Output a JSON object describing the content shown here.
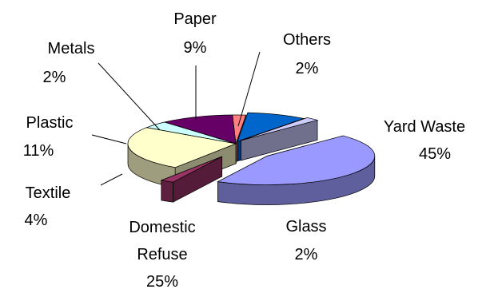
{
  "chart_data": {
    "type": "pie",
    "style": "3d-exploded",
    "legend": "none",
    "slices": [
      {
        "name": "Yard Waste",
        "value": 45,
        "label": "45%",
        "color": "#9999ff"
      },
      {
        "name": "Glass",
        "value": 2,
        "label": "2%",
        "color": "#993366"
      },
      {
        "name": "Domestic Refuse",
        "value": 25,
        "label": "25%",
        "color": "#ffffcc"
      },
      {
        "name": "Textile",
        "value": 4,
        "label": "4%",
        "color": "#ccffff"
      },
      {
        "name": "Plastic",
        "value": 11,
        "label": "11%",
        "color": "#660066"
      },
      {
        "name": "Metals",
        "value": 2,
        "label": "2%",
        "color": "#ff8080"
      },
      {
        "name": "Paper",
        "value": 9,
        "label": "9%",
        "color": "#0066cc"
      },
      {
        "name": "Others",
        "value": 2,
        "label": "2%",
        "color": "#ccccff"
      }
    ],
    "label_names": {
      "yard": "Yard Waste",
      "glass": "Glass",
      "domestic_line1": "Domestic",
      "domestic_line2": "Refuse",
      "textile": "Textile",
      "plastic": "Plastic",
      "metals": "Metals",
      "paper": "Paper",
      "others": "Others"
    }
  }
}
